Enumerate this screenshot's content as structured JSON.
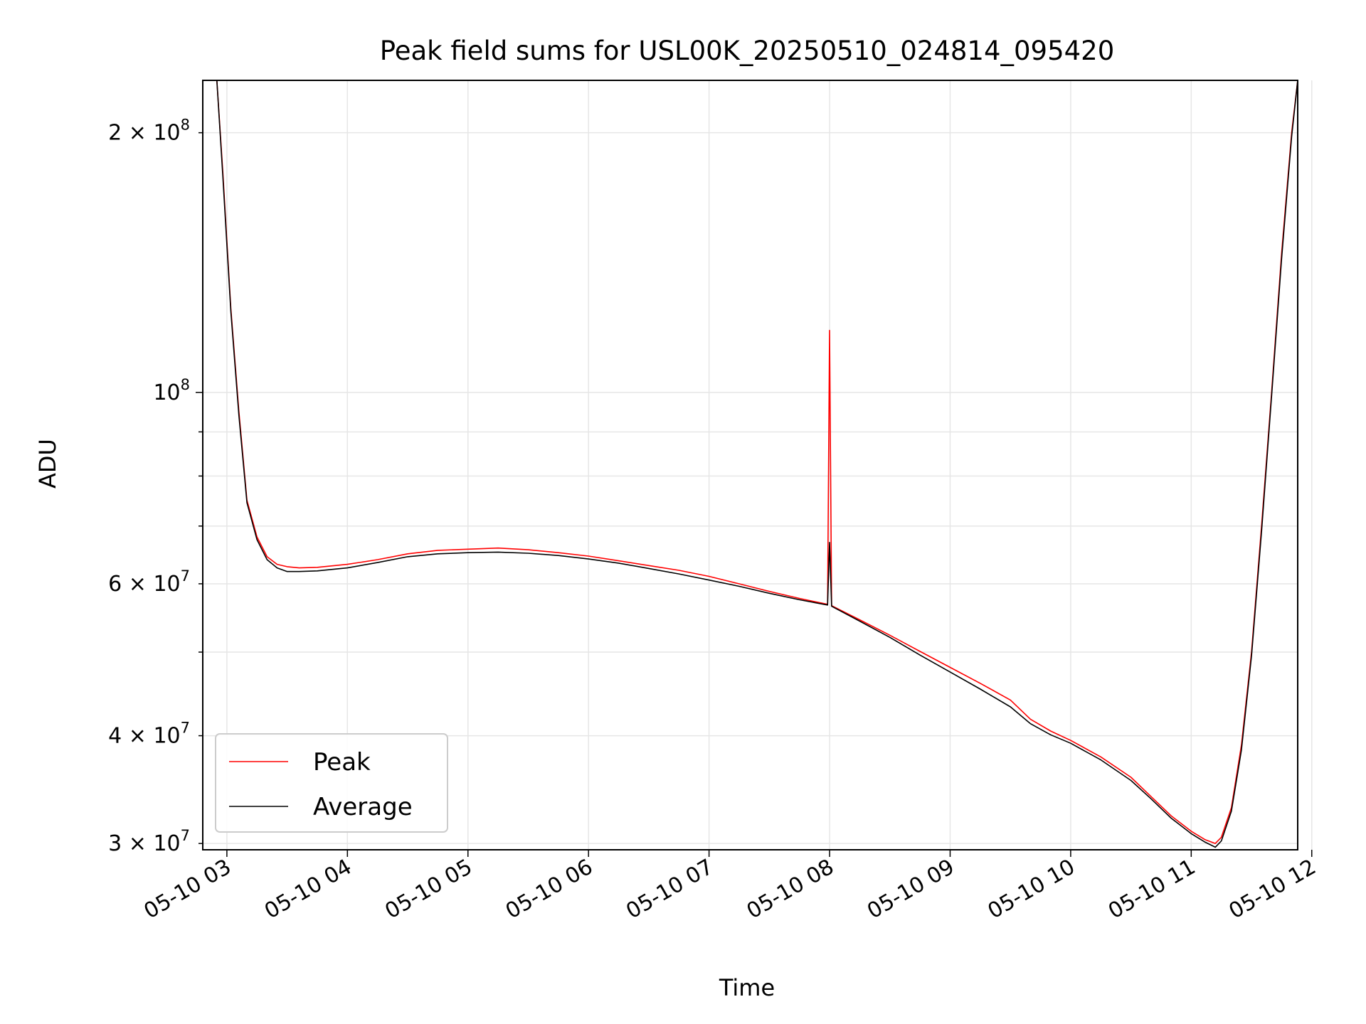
{
  "chart_data": {
    "type": "line",
    "title": "Peak field sums for USL00K_20250510_024814_095420",
    "xlabel": "Time",
    "ylabel": "ADU",
    "yscale": "log",
    "grid": true,
    "legend_position": "lower-left",
    "xlim": [
      "2025-05-10 02:48",
      "2025-05-10 11:53"
    ],
    "ylim": [
      29500000,
      230000000
    ],
    "x_ticks": [
      "05-10 03",
      "05-10 04",
      "05-10 05",
      "05-10 06",
      "05-10 07",
      "05-10 08",
      "05-10 09",
      "05-10 10",
      "05-10 11",
      "05-10 12"
    ],
    "y_ticks_major": [
      {
        "value": 100000000,
        "mantissa": "",
        "exponent": "8"
      }
    ],
    "y_ticks_minor": [
      {
        "value": 30000000,
        "mantissa": "3",
        "exponent": "7"
      },
      {
        "value": 40000000,
        "mantissa": "4",
        "exponent": "7"
      },
      {
        "value": 60000000,
        "mantissa": "6",
        "exponent": "7"
      },
      {
        "value": 200000000,
        "mantissa": "2",
        "exponent": "8"
      }
    ],
    "y_ticks_minor_unlabeled": [
      50000000,
      70000000,
      80000000,
      90000000
    ],
    "series": [
      {
        "name": "Peak",
        "color": "#ff0000",
        "x": [
          "2025-05-10 02:55",
          "2025-05-10 02:58",
          "2025-05-10 03:02",
          "2025-05-10 03:06",
          "2025-05-10 03:10",
          "2025-05-10 03:15",
          "2025-05-10 03:20",
          "2025-05-10 03:25",
          "2025-05-10 03:30",
          "2025-05-10 03:36",
          "2025-05-10 03:45",
          "2025-05-10 04:00",
          "2025-05-10 04:15",
          "2025-05-10 04:30",
          "2025-05-10 04:45",
          "2025-05-10 05:00",
          "2025-05-10 05:15",
          "2025-05-10 05:30",
          "2025-05-10 05:45",
          "2025-05-10 06:00",
          "2025-05-10 06:15",
          "2025-05-10 06:30",
          "2025-05-10 06:45",
          "2025-05-10 07:00",
          "2025-05-10 07:15",
          "2025-05-10 07:30",
          "2025-05-10 07:45",
          "2025-05-10 07:59",
          "2025-05-10 08:00",
          "2025-05-10 08:01",
          "2025-05-10 08:15",
          "2025-05-10 08:30",
          "2025-05-10 08:45",
          "2025-05-10 09:00",
          "2025-05-10 09:15",
          "2025-05-10 09:30",
          "2025-05-10 09:40",
          "2025-05-10 09:50",
          "2025-05-10 10:00",
          "2025-05-10 10:15",
          "2025-05-10 10:30",
          "2025-05-10 10:40",
          "2025-05-10 10:50",
          "2025-05-10 11:00",
          "2025-05-10 11:07",
          "2025-05-10 11:12",
          "2025-05-10 11:15",
          "2025-05-10 11:20",
          "2025-05-10 11:25",
          "2025-05-10 11:30",
          "2025-05-10 11:35",
          "2025-05-10 11:40",
          "2025-05-10 11:45",
          "2025-05-10 11:50",
          "2025-05-10 11:53"
        ],
        "values": [
          230000000,
          180000000,
          125000000,
          95000000,
          75000000,
          68000000,
          64500000,
          63200000,
          62800000,
          62600000,
          62700000,
          63200000,
          64000000,
          65000000,
          65600000,
          65800000,
          66000000,
          65700000,
          65200000,
          64600000,
          63800000,
          63000000,
          62200000,
          61200000,
          60000000,
          58800000,
          57700000,
          56800000,
          118000000,
          56600000,
          54500000,
          52300000,
          50100000,
          48000000,
          46000000,
          44000000,
          41800000,
          40500000,
          39500000,
          37800000,
          35800000,
          34000000,
          32300000,
          31000000,
          30300000,
          30000000,
          30500000,
          33000000,
          39000000,
          50000000,
          70000000,
          100000000,
          145000000,
          200000000,
          230000000
        ]
      },
      {
        "name": "Average",
        "color": "#000000",
        "x": [
          "2025-05-10 02:55",
          "2025-05-10 02:58",
          "2025-05-10 03:02",
          "2025-05-10 03:06",
          "2025-05-10 03:10",
          "2025-05-10 03:15",
          "2025-05-10 03:20",
          "2025-05-10 03:25",
          "2025-05-10 03:30",
          "2025-05-10 03:36",
          "2025-05-10 03:45",
          "2025-05-10 04:00",
          "2025-05-10 04:15",
          "2025-05-10 04:30",
          "2025-05-10 04:45",
          "2025-05-10 05:00",
          "2025-05-10 05:15",
          "2025-05-10 05:30",
          "2025-05-10 05:45",
          "2025-05-10 06:00",
          "2025-05-10 06:15",
          "2025-05-10 06:30",
          "2025-05-10 06:45",
          "2025-05-10 07:00",
          "2025-05-10 07:15",
          "2025-05-10 07:30",
          "2025-05-10 07:45",
          "2025-05-10 07:59",
          "2025-05-10 08:00",
          "2025-05-10 08:01",
          "2025-05-10 08:15",
          "2025-05-10 08:30",
          "2025-05-10 08:45",
          "2025-05-10 09:00",
          "2025-05-10 09:15",
          "2025-05-10 09:30",
          "2025-05-10 09:40",
          "2025-05-10 09:50",
          "2025-05-10 10:00",
          "2025-05-10 10:15",
          "2025-05-10 10:30",
          "2025-05-10 10:40",
          "2025-05-10 10:50",
          "2025-05-10 11:00",
          "2025-05-10 11:07",
          "2025-05-10 11:12",
          "2025-05-10 11:15",
          "2025-05-10 11:20",
          "2025-05-10 11:25",
          "2025-05-10 11:30",
          "2025-05-10 11:35",
          "2025-05-10 11:40",
          "2025-05-10 11:45",
          "2025-05-10 11:50",
          "2025-05-10 11:53"
        ],
        "values": [
          230000000,
          178000000,
          124000000,
          94000000,
          74500000,
          67500000,
          64000000,
          62600000,
          62000000,
          62000000,
          62100000,
          62600000,
          63500000,
          64500000,
          65000000,
          65200000,
          65300000,
          65100000,
          64700000,
          64100000,
          63400000,
          62500000,
          61600000,
          60600000,
          59600000,
          58500000,
          57500000,
          56700000,
          67000000,
          56500000,
          54300000,
          52000000,
          49600000,
          47400000,
          45300000,
          43200000,
          41300000,
          40100000,
          39200000,
          37500000,
          35500000,
          33800000,
          32100000,
          30800000,
          30100000,
          29700000,
          30200000,
          32700000,
          38500000,
          49500000,
          69000000,
          99000000,
          143000000,
          198000000,
          230000000
        ]
      }
    ]
  }
}
